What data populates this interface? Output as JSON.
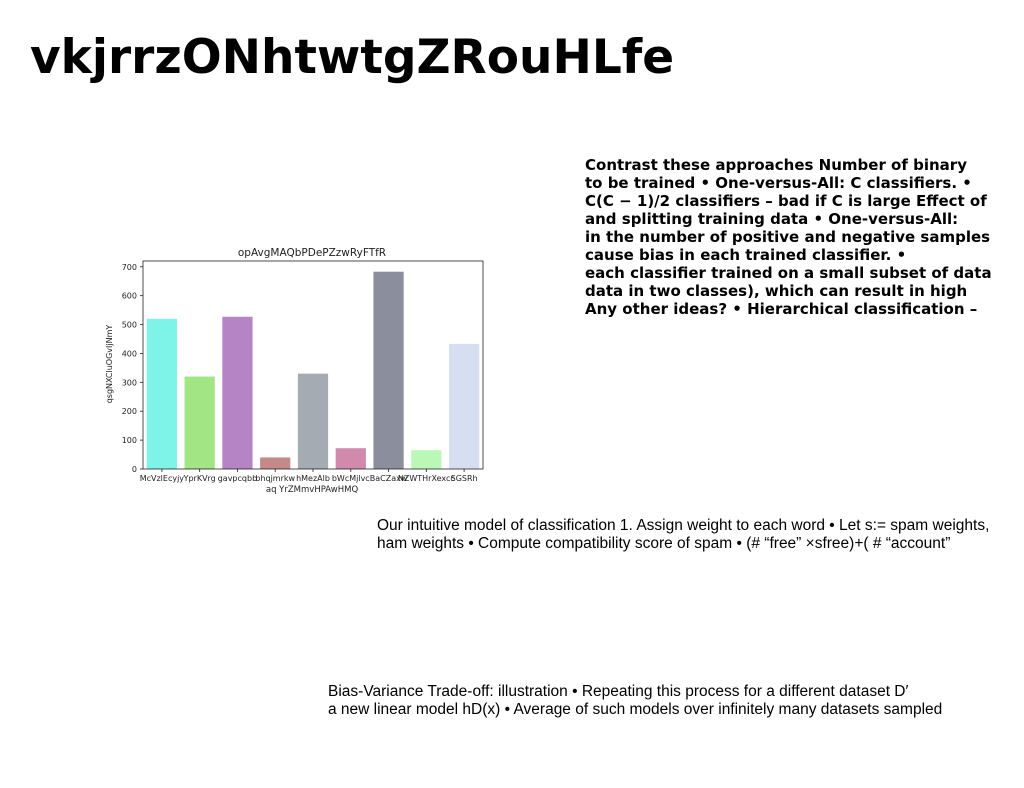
{
  "title": "vkjrrzONhtwtgZRouHLfe",
  "bold_lines": [
    "Contrast these approaches Number of binary",
    "to be trained • One-versus-All: C classifiers. •",
    "C(C − 1)/2 classifiers – bad if C is large Effect of",
    "and splitting training data • One-versus-All:",
    "in the number of positive and negative samples",
    "cause bias in each trained classifier. •",
    "each classifier trained on a small subset of data",
    "data in two classes), which can result in high",
    "Any other ideas? • Hierarchical classification –"
  ],
  "paragraph1_lines": [
    "Our intuitive model of classification 1. Assign weight to each word • Let s:= spam weights,",
    "ham weights • Compute compatibility score of spam • (# “free” ×sfree)+( # “account”"
  ],
  "paragraph2_lines": [
    "Bias-Variance Trade-off: illustration • Repeating this process for a different dataset D′",
    "a new linear model hD(x) • Average of such models over infinitely many datasets sampled"
  ],
  "chart_data": {
    "type": "bar",
    "title": "opAvgMAQbPDePZzwRyFTfR",
    "xlabel": "aq YrZMmvHPAwHMQ",
    "ylabel": "qsgNXCluOGvIjNmY",
    "categories": [
      "McVzlEcyjy",
      "YprKVrg",
      "gavpcqbb",
      "bhqjmrkw",
      "hMezAlb",
      "bWcMjlvc",
      "BaCZaxw",
      "NZWTHrXexcc",
      "SGSRh"
    ],
    "values": [
      520,
      320,
      527,
      40,
      330,
      72,
      683,
      65,
      433
    ],
    "colors": [
      "#7ef4e8",
      "#a2e585",
      "#b584c4",
      "#c48a88",
      "#a4abb3",
      "#d28aac",
      "#8a8e9d",
      "#bbf7b6",
      "#d6def2"
    ],
    "ylim": [
      0,
      720
    ],
    "yticks": [
      0,
      100,
      200,
      300,
      400,
      500,
      600,
      700
    ],
    "grid": false
  }
}
